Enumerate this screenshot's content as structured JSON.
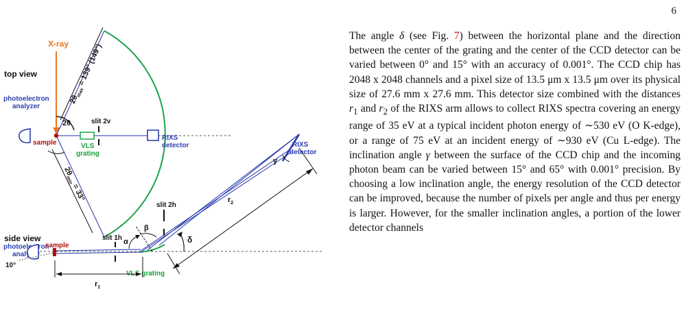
{
  "page": {
    "number": "6"
  },
  "figure": {
    "top_view": {
      "title": "top view",
      "xray": "X-ray",
      "analyzer_line1": "photoelectron",
      "analyzer_line2": "analyzer",
      "sample": "sample",
      "slit": "slit 2v",
      "grating_line1": "VLS",
      "grating_line2": "grating",
      "detector_line1": "RIXS",
      "detector_line2": "detector",
      "angle_2theta": "2θ",
      "angle_max_prefix": "2θ",
      "angle_max_sub": "max",
      "angle_max_value": " = 139° (149°)",
      "angle_min_prefix": "2θ",
      "angle_min_sub": "min",
      "angle_min_value": " = 33°"
    },
    "side_view": {
      "title": "side view",
      "analyzer_line1": "photoelectron",
      "analyzer_line2": "analyzer",
      "angle_10": "10°",
      "sample": "sample",
      "slit1": "slit 1h",
      "slit2": "slit 2h",
      "alpha": "α",
      "beta": "β",
      "gamma": "γ",
      "delta": "δ",
      "r1_base": "r",
      "r1_sub": "1",
      "r2_base": "r",
      "r2_sub": "2",
      "grating": "VLS grating",
      "detector_line1": "RIXS",
      "detector_line2": "detector"
    },
    "colors": {
      "xray": "#e87722",
      "optics": "#2233aa",
      "circle": "#1aa34a",
      "sample": "#b01010",
      "label_blue": "#2b3fb0",
      "label_green": "#1a9e3c"
    }
  },
  "text": {
    "s1": "The angle ",
    "delta": "δ",
    "s2": " (see Fig. ",
    "figref": "7",
    "s3": ") between the horizontal plane and the direction between the center of the grating and the center of the CCD detector can be varied between 0° and 15° with an accuracy of 0.001°. The CCD chip has 2048 x 2048 channels and a pixel size of 13.5 μm x 13.5 μm over its physical size of 27.6 mm x 27.6 mm. This detector size combined with the distances ",
    "r": "r",
    "r1_sub": "1",
    "s4": " and ",
    "r2_sub": "2",
    "s5": " of the RIXS arm allows to collect RIXS spectra covering an energy range of 35 eV at a typical incident photon energy of ∼530 eV (O K-edge), or a range of 75 eV at an incident energy of ∼930 eV (Cu L-edge). The inclination angle ",
    "gamma": "γ",
    "s6": " between the surface of the CCD chip and the incoming photon beam can be varied between 15° and 65° with 0.001° precision. By choosing a low inclination angle, the energy resolution of the CCD detector can be improved, because the number of pixels per angle and thus per energy is larger. However, for the smaller inclination angles, a portion of the lower detector channels"
  }
}
